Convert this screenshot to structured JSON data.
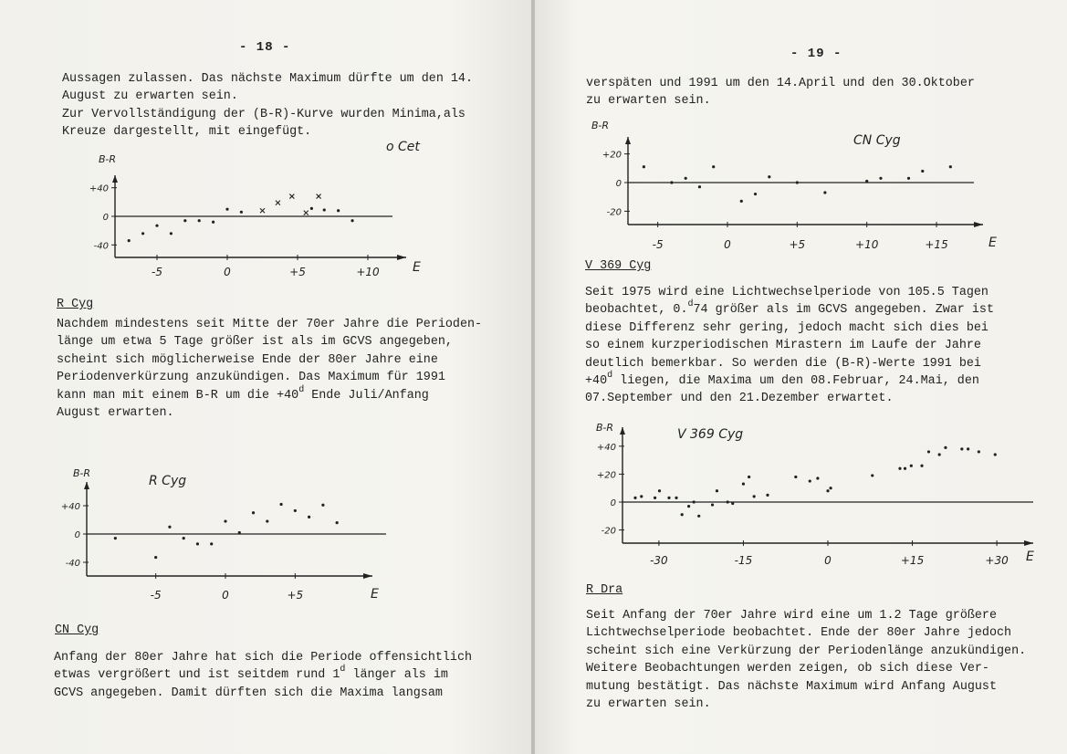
{
  "left_page": {
    "page_number": "- 18 -",
    "intro_lines": [
      "Aussagen zulassen. Das nächste Maximum dürfte um den 14.",
      "August zu erwarten sein.",
      "Zur Vervollständigung der (B-R)-Kurve wurden Minima,als",
      "Kreuze dargestellt, mit eingefügt."
    ],
    "r_cyg": {
      "heading": "R Cyg",
      "lines": [
        "Nachdem mindestens seit Mitte der 70er Jahre die Perioden-",
        "länge um etwa 5 Tage größer ist als im GCVS angegeben,",
        "scheint sich möglicherweise Ende der 80er Jahre eine",
        "Periodenverkürzung anzukündigen. Das Maximum für 1991",
        {
          "pre": "kann man mit einem B-R um die +40",
          "sup": "d",
          "post": " Ende Juli/Anfang"
        },
        "August erwarten."
      ]
    },
    "cn_cyg": {
      "heading": "CN Cyg",
      "lines": [
        "Anfang der 80er Jahre hat sich die Periode offensichtlich",
        {
          "pre": "etwas vergrößert und ist seitdem rund 1",
          "sup": "d",
          "post": " länger als im"
        },
        "GCVS angegeben. Damit dürften sich die Maxima langsam"
      ]
    }
  },
  "right_page": {
    "page_number": "- 19 -",
    "intro_lines": [
      "verspäten und 1991 um den 14.April und den 30.Oktober",
      "zu erwarten sein."
    ],
    "v369_cyg": {
      "heading": "V 369 Cyg",
      "lines": [
        "Seit 1975 wird eine Lichtwechselperiode von 105.5 Tagen",
        {
          "pre": "beobachtet, 0.",
          "sup": "d",
          "post": "74 größer als im GCVS angegeben. Zwar ist"
        },
        "diese Differenz sehr gering, jedoch macht sich dies bei",
        "so einem kurzperiodischen Mirastern im Laufe der Jahre",
        "deutlich bemerkbar. So werden die (B-R)-Werte 1991 bei",
        {
          "pre": "+40",
          "sup": "d",
          "post": " liegen, die Maxima um den 08.Februar, 24.Mai, den"
        },
        "07.September und den 21.Dezember erwartet."
      ]
    },
    "r_dra": {
      "heading": "R Dra",
      "lines": [
        "Seit Anfang der 70er Jahre wird eine um 1.2 Tage größere",
        "Lichtwechselperiode beobachtet. Ende der 80er Jahre jedoch",
        "scheint sich eine Verkürzung der Periodenlänge anzukündigen.",
        "Weitere Beobachtungen werden zeigen, ob sich diese Ver-",
        "mutung bestätigt. Das nächste Maximum wird Anfang August",
        "zu erwarten sein."
      ]
    }
  },
  "chart_data": [
    {
      "id": "o_cet",
      "type": "scatter",
      "title": "o Cet",
      "xlabel": "E",
      "ylabel": "B-R",
      "xticks": [
        {
          "v": -5,
          "label": "-5"
        },
        {
          "v": 0,
          "label": "0"
        },
        {
          "v": 5,
          "label": "+5"
        },
        {
          "v": 10,
          "label": "+10"
        }
      ],
      "yticks": [
        {
          "v": 40,
          "label": "+40"
        },
        {
          "v": 0,
          "label": "0"
        },
        {
          "v": -40,
          "label": "-40"
        }
      ],
      "series": [
        {
          "marker": "dot",
          "points": [
            [
              -7,
              -34
            ],
            [
              -6,
              -24
            ],
            [
              -5,
              -13
            ],
            [
              -4,
              -24
            ],
            [
              -3,
              -6
            ],
            [
              -2,
              -6
            ],
            [
              -1,
              -8
            ],
            [
              0,
              10
            ],
            [
              1,
              6
            ],
            [
              6,
              11
            ],
            [
              6.9,
              9
            ],
            [
              7.9,
              8
            ],
            [
              8.9,
              -6
            ]
          ]
        },
        {
          "name": "Minima",
          "marker": "cross",
          "points": [
            [
              2.5,
              8
            ],
            [
              3.6,
              19
            ],
            [
              4.6,
              28
            ],
            [
              5.6,
              5
            ],
            [
              6.5,
              28
            ]
          ]
        }
      ]
    },
    {
      "id": "r_cyg",
      "type": "scatter",
      "title": "R Cyg",
      "xlabel": "E",
      "ylabel": "B-R",
      "xticks": [
        {
          "v": -5,
          "label": "-5"
        },
        {
          "v": 0,
          "label": "0"
        },
        {
          "v": 5,
          "label": "+5"
        }
      ],
      "yticks": [
        {
          "v": 40,
          "label": "+40"
        },
        {
          "v": 0,
          "label": "0"
        },
        {
          "v": -40,
          "label": "-40"
        }
      ],
      "series": [
        {
          "marker": "dot",
          "points": [
            [
              -7.9,
              -6
            ],
            [
              -5,
              -33
            ],
            [
              -4,
              10
            ],
            [
              -3,
              -6
            ],
            [
              -2,
              -14
            ],
            [
              -1,
              -14
            ],
            [
              0,
              18
            ],
            [
              1,
              2
            ],
            [
              2,
              30
            ],
            [
              3,
              18
            ],
            [
              4,
              42
            ],
            [
              5,
              33
            ],
            [
              6,
              24
            ],
            [
              7,
              41
            ],
            [
              8,
              16
            ]
          ]
        }
      ]
    },
    {
      "id": "cn_cyg",
      "type": "scatter",
      "title": "CN Cyg",
      "xlabel": "E",
      "ylabel": "B-R",
      "xticks": [
        {
          "v": -5,
          "label": "-5"
        },
        {
          "v": 0,
          "label": "0"
        },
        {
          "v": 5,
          "label": "+5"
        },
        {
          "v": 10,
          "label": "+10"
        },
        {
          "v": 15,
          "label": "+15"
        }
      ],
      "yticks": [
        {
          "v": 20,
          "label": "+20"
        },
        {
          "v": 0,
          "label": "0"
        },
        {
          "v": -20,
          "label": "-20"
        }
      ],
      "series": [
        {
          "marker": "dot",
          "points": [
            [
              -6,
              11
            ],
            [
              -4,
              0
            ],
            [
              -3,
              3
            ],
            [
              -2,
              -3
            ],
            [
              -1,
              11
            ],
            [
              1,
              -13
            ],
            [
              2,
              -8
            ],
            [
              3,
              4
            ],
            [
              5,
              0
            ],
            [
              7,
              -7
            ],
            [
              10,
              1
            ],
            [
              11,
              3
            ],
            [
              13,
              3
            ],
            [
              14,
              8
            ],
            [
              16,
              11
            ]
          ]
        }
      ]
    },
    {
      "id": "v369_cyg",
      "type": "scatter",
      "title": "V 369 Cyg",
      "xlabel": "E",
      "ylabel": "B-R",
      "xticks": [
        {
          "v": -30,
          "label": "-30"
        },
        {
          "v": -15,
          "label": "-15"
        },
        {
          "v": 0,
          "label": "0"
        },
        {
          "v": 15,
          "label": "+15"
        },
        {
          "v": 30,
          "label": "+30"
        }
      ],
      "yticks": [
        {
          "v": 40,
          "label": "+40"
        },
        {
          "v": 20,
          "label": "+20"
        },
        {
          "v": 0,
          "label": "0"
        },
        {
          "v": -20,
          "label": "-20"
        }
      ],
      "series": [
        {
          "marker": "dot",
          "points": [
            [
              -34.2,
              3
            ],
            [
              -33.1,
              4
            ],
            [
              -30.7,
              3
            ],
            [
              -29.9,
              8
            ],
            [
              -28.2,
              3
            ],
            [
              -26.9,
              3
            ],
            [
              -25.9,
              -9
            ],
            [
              -24.7,
              -3
            ],
            [
              -23.8,
              0
            ],
            [
              -22.9,
              -10
            ],
            [
              -20.5,
              -2
            ],
            [
              -19.7,
              8
            ],
            [
              -17.8,
              0
            ],
            [
              -16.9,
              -1
            ],
            [
              -15,
              13
            ],
            [
              -14,
              18
            ],
            [
              -13.1,
              4
            ],
            [
              -10.7,
              5
            ],
            [
              -5.7,
              18
            ],
            [
              -3.2,
              15
            ],
            [
              -1.8,
              17
            ],
            [
              0,
              8
            ],
            [
              0.5,
              10
            ],
            [
              7.9,
              19
            ],
            [
              12.8,
              24
            ],
            [
              13.7,
              24
            ],
            [
              14.8,
              26
            ],
            [
              16.7,
              26
            ],
            [
              17.9,
              36
            ],
            [
              19.8,
              34
            ],
            [
              20.9,
              39
            ],
            [
              23.8,
              38
            ],
            [
              24.9,
              38
            ],
            [
              26.8,
              36
            ],
            [
              29.7,
              34
            ]
          ]
        }
      ]
    }
  ]
}
